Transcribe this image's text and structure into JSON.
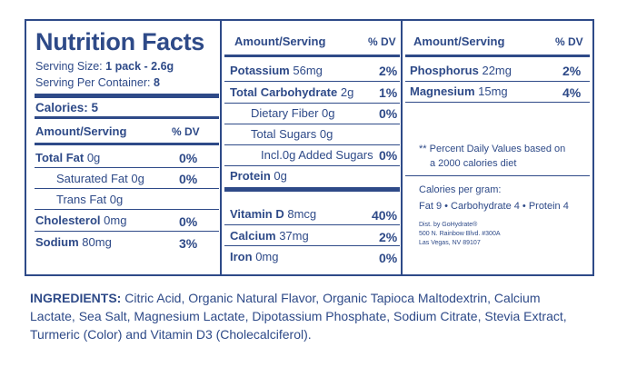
{
  "title": "Nutrition Facts",
  "serving": {
    "size_label": "Serving Size:",
    "size_value": "1 pack - 2.6g",
    "per_container_label": "Serving Per Container:",
    "per_container_value": "8"
  },
  "calories": "Calories: 5",
  "col1": {
    "header_amount": "Amount/Serving",
    "header_dv": "% DV",
    "rows": [
      {
        "name": "Total Fat",
        "amount": "0g",
        "dv": "0%"
      },
      {
        "name": "Saturated Fat",
        "amount": "0g",
        "dv": "0%"
      },
      {
        "name": "Trans Fat",
        "amount": "0g",
        "dv": ""
      },
      {
        "name": "Cholesterol",
        "amount": "0mg",
        "dv": "0%"
      },
      {
        "name": "Sodium",
        "amount": "80mg",
        "dv": "3%"
      }
    ]
  },
  "col2": {
    "header_amount": "Amount/Serving",
    "header_dv": "% DV",
    "rows": [
      {
        "name": "Potassium",
        "amount": "56mg",
        "dv": "2%"
      },
      {
        "name": "Total Carbohydrate",
        "amount": "2g",
        "dv": "1%"
      },
      {
        "name": "Dietary Fiber",
        "amount": "0g",
        "dv": "0%"
      },
      {
        "name": "Total Sugars",
        "amount": "0g",
        "dv": ""
      },
      {
        "name": "Incl.",
        "amount": "0g Added Sugars",
        "dv": "0%"
      },
      {
        "name": "Protein",
        "amount": "0g",
        "dv": ""
      },
      {
        "name": "Vitamin D",
        "amount": "8mcg",
        "dv": "40%"
      },
      {
        "name": "Calcium",
        "amount": "37mg",
        "dv": "2%"
      },
      {
        "name": "Iron",
        "amount": "0mg",
        "dv": "0%"
      }
    ]
  },
  "col3": {
    "header_amount": "Amount/Serving",
    "header_dv": "% DV",
    "rows": [
      {
        "name": "Phosphorus",
        "amount": "22mg",
        "dv": "2%"
      },
      {
        "name": "Magnesium",
        "amount": "15mg",
        "dv": "4%"
      }
    ],
    "footnote_line1": "** Percent Daily Values based on",
    "footnote_line2": "a 2000 calories diet",
    "cal_per_gram_label": "Calories per gram:",
    "cal_per_gram_values": "Fat 9 • Carbohydrate 4 • Protein 4",
    "dist_line1": "Dist. by GoHydrate®",
    "dist_line2": "500 N. Rainbow Blvd. #300A",
    "dist_line3": "Las Vegas, NV 89107"
  },
  "ingredients": {
    "label": "INGREDIENTS:",
    "text": "Citric Acid, Organic Natural Flavor, Organic Tapioca Maltodextrin, Calcium Lactate, Sea Salt, Magnesium Lactate, Dipotassium Phosphate, Sodium Citrate, Stevia Extract, Turmeric (Color) and Vitamin D3 (Cholecalciferol)."
  },
  "colors": {
    "ink": "#2e4a88",
    "background": "#ffffff"
  }
}
